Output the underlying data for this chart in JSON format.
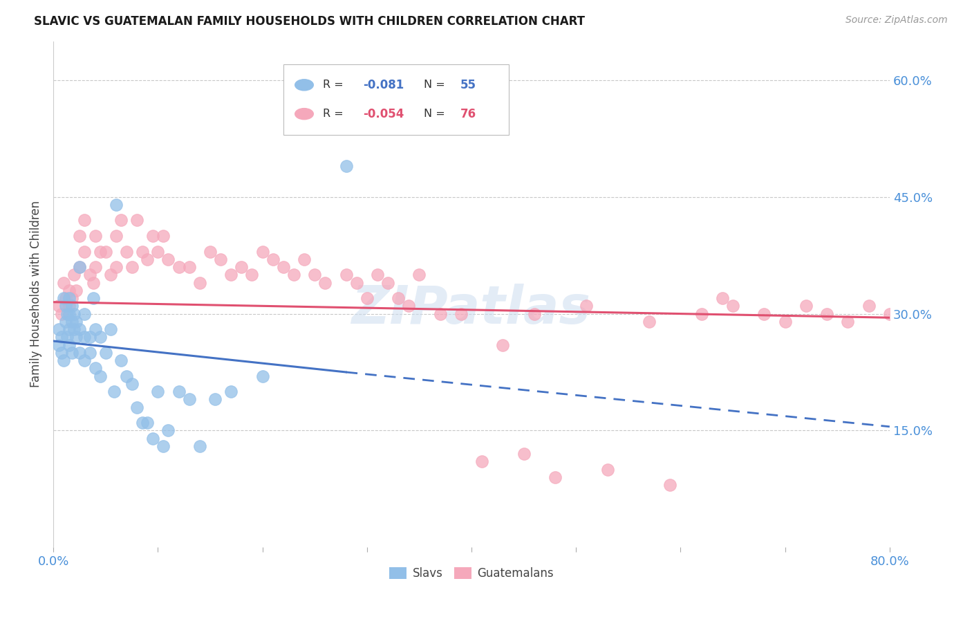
{
  "title": "SLAVIC VS GUATEMALAN FAMILY HOUSEHOLDS WITH CHILDREN CORRELATION CHART",
  "source": "Source: ZipAtlas.com",
  "ylabel": "Family Households with Children",
  "ytick_labels": [
    "60.0%",
    "45.0%",
    "30.0%",
    "15.0%"
  ],
  "ytick_values": [
    0.6,
    0.45,
    0.3,
    0.15
  ],
  "xlim": [
    0.0,
    0.8
  ],
  "ylim": [
    0.0,
    0.65
  ],
  "slavs_color": "#92bfe8",
  "guatemalans_color": "#f5a8bb",
  "slavs_line_color": "#4472c4",
  "guatemalans_line_color": "#e05070",
  "watermark": "ZIPatlas",
  "background_color": "#ffffff",
  "grid_color": "#c8c8c8",
  "axis_label_color": "#4a90d9",
  "title_color": "#1a1a1a",
  "slavs_x": [
    0.005,
    0.005,
    0.008,
    0.008,
    0.01,
    0.01,
    0.012,
    0.012,
    0.013,
    0.013,
    0.015,
    0.015,
    0.015,
    0.015,
    0.018,
    0.018,
    0.018,
    0.02,
    0.02,
    0.022,
    0.022,
    0.025,
    0.025,
    0.025,
    0.03,
    0.03,
    0.03,
    0.035,
    0.035,
    0.038,
    0.04,
    0.04,
    0.045,
    0.045,
    0.05,
    0.055,
    0.058,
    0.06,
    0.065,
    0.07,
    0.075,
    0.08,
    0.085,
    0.09,
    0.095,
    0.1,
    0.105,
    0.11,
    0.12,
    0.13,
    0.14,
    0.155,
    0.17,
    0.2,
    0.28
  ],
  "slavs_y": [
    0.28,
    0.26,
    0.27,
    0.25,
    0.32,
    0.24,
    0.31,
    0.29,
    0.3,
    0.27,
    0.32,
    0.3,
    0.28,
    0.26,
    0.31,
    0.29,
    0.25,
    0.3,
    0.28,
    0.29,
    0.27,
    0.36,
    0.28,
    0.25,
    0.3,
    0.27,
    0.24,
    0.27,
    0.25,
    0.32,
    0.28,
    0.23,
    0.27,
    0.22,
    0.25,
    0.28,
    0.2,
    0.44,
    0.24,
    0.22,
    0.21,
    0.18,
    0.16,
    0.16,
    0.14,
    0.2,
    0.13,
    0.15,
    0.2,
    0.19,
    0.13,
    0.19,
    0.2,
    0.22,
    0.49
  ],
  "guatemalans_x": [
    0.005,
    0.008,
    0.01,
    0.012,
    0.015,
    0.015,
    0.018,
    0.02,
    0.022,
    0.025,
    0.025,
    0.03,
    0.03,
    0.035,
    0.038,
    0.04,
    0.04,
    0.045,
    0.05,
    0.055,
    0.06,
    0.06,
    0.065,
    0.07,
    0.075,
    0.08,
    0.085,
    0.09,
    0.095,
    0.1,
    0.105,
    0.11,
    0.12,
    0.13,
    0.14,
    0.15,
    0.16,
    0.17,
    0.18,
    0.19,
    0.2,
    0.21,
    0.22,
    0.23,
    0.24,
    0.25,
    0.26,
    0.28,
    0.29,
    0.3,
    0.31,
    0.32,
    0.33,
    0.34,
    0.35,
    0.37,
    0.39,
    0.41,
    0.43,
    0.45,
    0.46,
    0.48,
    0.51,
    0.53,
    0.57,
    0.59,
    0.62,
    0.64,
    0.65,
    0.68,
    0.7,
    0.72,
    0.74,
    0.76,
    0.78,
    0.8
  ],
  "guatemalans_y": [
    0.31,
    0.3,
    0.34,
    0.32,
    0.33,
    0.31,
    0.32,
    0.35,
    0.33,
    0.4,
    0.36,
    0.42,
    0.38,
    0.35,
    0.34,
    0.4,
    0.36,
    0.38,
    0.38,
    0.35,
    0.4,
    0.36,
    0.42,
    0.38,
    0.36,
    0.42,
    0.38,
    0.37,
    0.4,
    0.38,
    0.4,
    0.37,
    0.36,
    0.36,
    0.34,
    0.38,
    0.37,
    0.35,
    0.36,
    0.35,
    0.38,
    0.37,
    0.36,
    0.35,
    0.37,
    0.35,
    0.34,
    0.35,
    0.34,
    0.32,
    0.35,
    0.34,
    0.32,
    0.31,
    0.35,
    0.3,
    0.3,
    0.11,
    0.26,
    0.12,
    0.3,
    0.09,
    0.31,
    0.1,
    0.29,
    0.08,
    0.3,
    0.32,
    0.31,
    0.3,
    0.29,
    0.31,
    0.3,
    0.29,
    0.31,
    0.3
  ],
  "slavs_line_x0": 0.0,
  "slavs_line_x_solid_end": 0.28,
  "slavs_line_x_end": 0.8,
  "slavs_line_y0": 0.265,
  "slavs_line_y_solid_end": 0.225,
  "slavs_line_y_end": 0.155,
  "guatemalans_line_x0": 0.0,
  "guatemalans_line_x_end": 0.8,
  "guatemalans_line_y0": 0.315,
  "guatemalans_line_y_end": 0.295
}
